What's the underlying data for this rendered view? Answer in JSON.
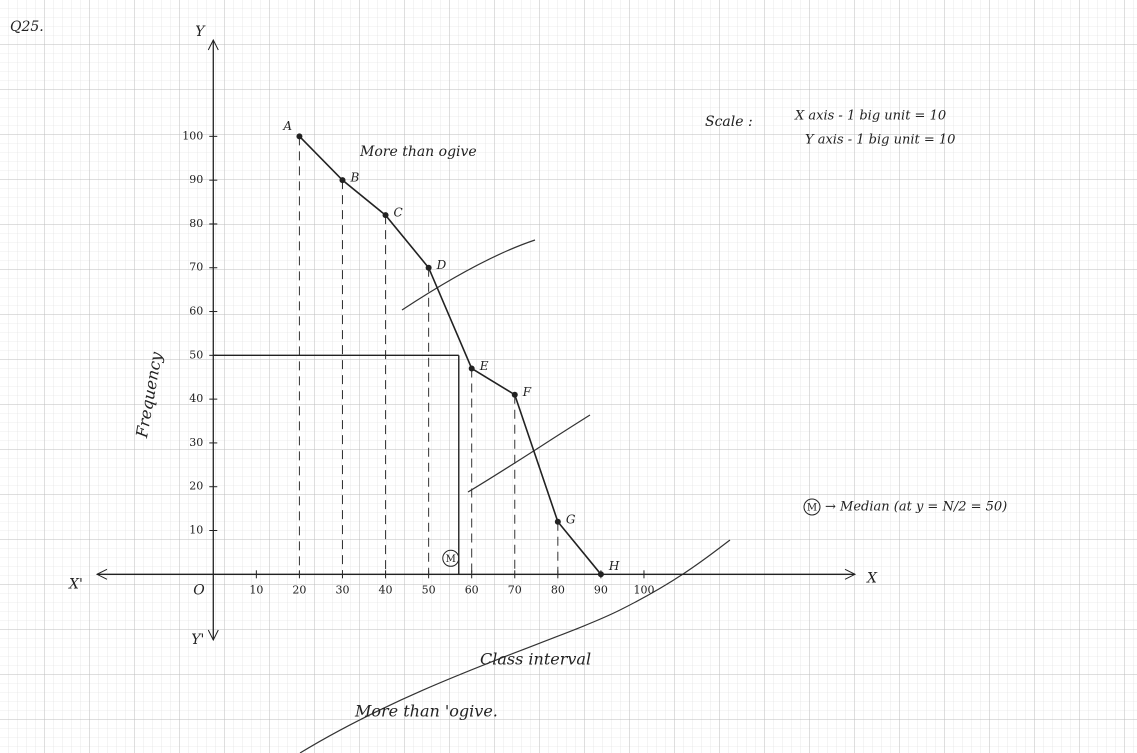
{
  "chart_data": {
    "type": "line",
    "heading": "Q25.",
    "x": [
      20,
      30,
      40,
      50,
      60,
      70,
      80,
      90
    ],
    "series": [
      {
        "name": "More than ogive",
        "color": "#222222",
        "values": [
          100,
          90,
          82,
          70,
          47,
          41,
          12,
          0
        ],
        "point_labels": [
          "A",
          "B",
          "C",
          "D",
          "E",
          "F",
          "G",
          "H"
        ]
      }
    ],
    "xlim": [
      -27,
      149
    ],
    "ylim": [
      -15,
      122
    ],
    "xticks": [
      10,
      20,
      30,
      40,
      50,
      60,
      70,
      80,
      90,
      100
    ],
    "yticks": [
      10,
      20,
      30,
      40,
      50,
      60,
      70,
      80,
      90,
      100
    ],
    "x_axis_label": "Class interval",
    "y_axis_label": "Frequency",
    "axis_names": {
      "x": "X",
      "x_neg": "X'",
      "y": "Y",
      "y_neg": "Y'",
      "origin": "O"
    },
    "annotation": "More than ogive",
    "caption": "More than 'ogive.",
    "scale": {
      "title": "Scale :",
      "x": "X axis - 1 big unit = 10",
      "y": "Y axis - 1 big unit = 10"
    },
    "median": {
      "label": "M",
      "x": 57,
      "y": 50,
      "note": "→ Median (at y = N/2 = 50)"
    },
    "grid": true
  }
}
